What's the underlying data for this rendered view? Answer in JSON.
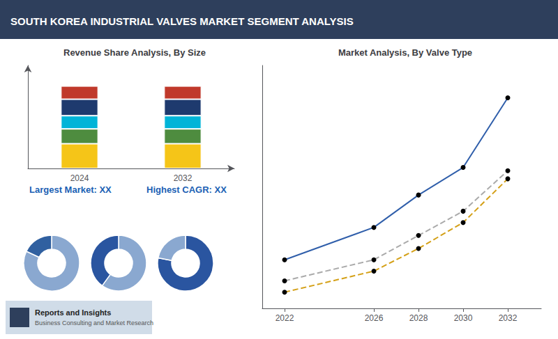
{
  "title": "SOUTH KOREA INDUSTRIAL VALVES MARKET SEGMENT ANALYSIS",
  "annotations": [
    "Reports and Insights",
    "Business Consulting and Market Research"
  ],
  "chart_data": [
    {
      "type": "bar",
      "title": "Revenue Share Analysis, By Size",
      "categories": [
        "2024",
        "2032"
      ],
      "series": [
        {
          "color": "#f5c518",
          "values": [
            0.3,
            0.3
          ]
        },
        {
          "color": "#4e8c3f",
          "values": [
            0.18,
            0.18
          ]
        },
        {
          "color": "#00b4d8",
          "values": [
            0.16,
            0.16
          ]
        },
        {
          "color": "#1e3a6e",
          "values": [
            0.2,
            0.2
          ]
        },
        {
          "color": "#c0392b",
          "values": [
            0.16,
            0.16
          ]
        }
      ],
      "stacked": true,
      "ylim": [
        0,
        1.25
      ],
      "tick_labels": "x",
      "grid": false,
      "annotations": [
        "Largest Market: XX",
        "Highest CAGR: XX"
      ]
    },
    {
      "type": "pie",
      "values": [
        82,
        18
      ],
      "colors": [
        "#8aa8d0",
        "#3060a0"
      ]
    },
    {
      "type": "pie",
      "values": [
        60,
        40
      ],
      "colors": [
        "#8aa8d0",
        "#2a55a0"
      ]
    },
    {
      "type": "pie",
      "values": [
        78,
        22
      ],
      "colors": [
        "#2a55a0",
        "#8aa8d0"
      ]
    },
    {
      "type": "line",
      "title": "Market Analysis, By Valve Type",
      "x": [
        2022,
        2026,
        2028,
        2030,
        2032
      ],
      "series": [
        {
          "color": "#2f5eaa",
          "line_style": "solid",
          "marker": "circle",
          "values": [
            3.5,
            5.5,
            7.5,
            9.2,
            13.5
          ]
        },
        {
          "color": "#aaaaaa",
          "line_style": "dashed",
          "marker": "circle",
          "values": [
            2.2,
            3.5,
            5.0,
            6.5,
            9.0
          ]
        },
        {
          "color": "#d4a017",
          "line_style": "dashed",
          "marker": "circle",
          "values": [
            1.5,
            2.8,
            4.2,
            5.8,
            8.5
          ]
        }
      ],
      "xlim": [
        2021,
        2033.5
      ],
      "xticks": [
        2022,
        2026,
        2028,
        2030,
        2032
      ],
      "ylim": [
        0.5,
        15.5
      ],
      "tick_labels": "x",
      "grid": false
    }
  ]
}
